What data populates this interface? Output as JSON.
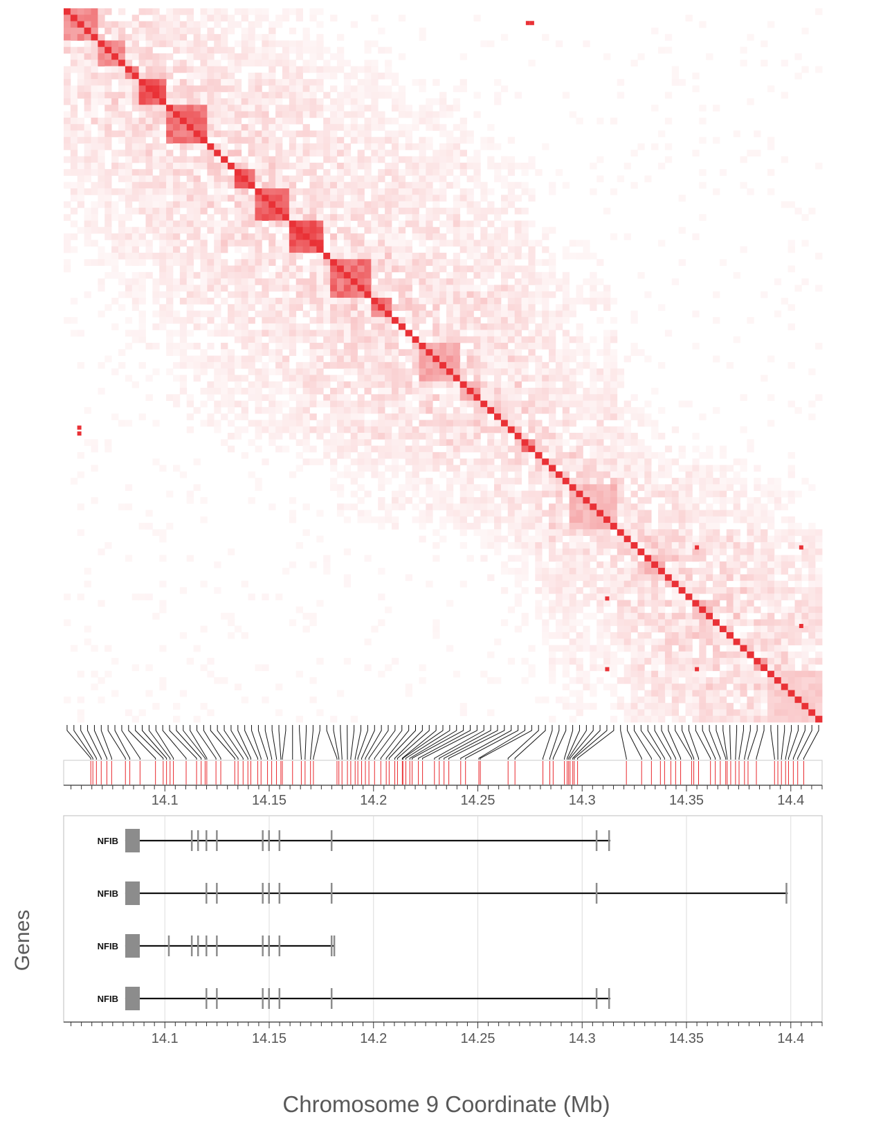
{
  "chart_data": [
    {
      "type": "heatmap",
      "description_source": "linkage-disequilibrium style matrix",
      "colors": {
        "low": "#ffffff",
        "high": "#e8262b"
      },
      "value_range": [
        0,
        1
      ],
      "blocks": [
        {
          "start": 14.059,
          "end": 14.074,
          "value": 0.55
        },
        {
          "start": 14.074,
          "end": 14.09,
          "value": 0.6
        },
        {
          "start": 14.09,
          "end": 14.1,
          "value": 0.55
        },
        {
          "start": 14.1,
          "end": 14.115,
          "value": 0.85
        },
        {
          "start": 14.115,
          "end": 14.127,
          "value": 0.7
        },
        {
          "start": 14.141,
          "end": 14.148,
          "value": 0.85
        },
        {
          "start": 14.148,
          "end": 14.16,
          "value": 0.75
        },
        {
          "start": 14.16,
          "end": 14.172,
          "value": 0.85
        },
        {
          "start": 14.173,
          "end": 14.182,
          "value": 0.7
        },
        {
          "start": 14.183,
          "end": 14.193,
          "value": 0.7
        },
        {
          "start": 14.193,
          "end": 14.199,
          "value": 0.65
        },
        {
          "start": 14.208,
          "end": 14.218,
          "value": 0.45
        },
        {
          "start": 14.218,
          "end": 14.226,
          "value": 0.45
        },
        {
          "start": 14.25,
          "end": 14.263,
          "value": 0.7
        },
        {
          "start": 14.267,
          "end": 14.273,
          "value": 0.6
        },
        {
          "start": 14.29,
          "end": 14.3,
          "value": 0.35
        },
        {
          "start": 14.3,
          "end": 14.307,
          "value": 0.35
        },
        {
          "start": 14.318,
          "end": 14.327,
          "value": 0.3
        },
        {
          "start": 14.338,
          "end": 14.345,
          "value": 0.35
        },
        {
          "start": 14.358,
          "end": 14.368,
          "value": 0.35
        },
        {
          "start": 14.378,
          "end": 14.388,
          "value": 0.45
        },
        {
          "start": 14.388,
          "end": 14.412,
          "value": 0.25
        }
      ],
      "hotspots": [
        {
          "x": 14.274,
          "y": 14.059
        },
        {
          "x": 14.276,
          "y": 14.059
        },
        {
          "x": 14.059,
          "y": 14.265
        },
        {
          "x": 14.059,
          "y": 14.268
        },
        {
          "x": 14.355,
          "y": 14.326
        },
        {
          "x": 14.405,
          "y": 14.326
        },
        {
          "x": 14.405,
          "y": 14.366
        },
        {
          "x": 14.312,
          "y": 14.352
        },
        {
          "x": 14.312,
          "y": 14.388
        },
        {
          "x": 14.355,
          "y": 14.388
        }
      ]
    },
    {
      "type": "scatter",
      "description_source": "variant positions track",
      "xlim": [
        14.0515,
        14.415
      ],
      "xticks": [
        14.1,
        14.15,
        14.2,
        14.25,
        14.3,
        14.35,
        14.4
      ],
      "xticklabels": [
        "14.1",
        "14.15",
        "14.2",
        "14.25",
        "14.3",
        "14.35",
        "14.4"
      ],
      "positions": [
        14.0645,
        14.0655,
        14.0672,
        14.0695,
        14.0722,
        14.0745,
        14.0811,
        14.0832,
        14.0881,
        14.0955,
        14.0992,
        14.1008,
        14.1025,
        14.1041,
        14.1102,
        14.1152,
        14.1174,
        14.1193,
        14.1201,
        14.1245,
        14.1268,
        14.1335,
        14.1351,
        14.1375,
        14.1398,
        14.1412,
        14.1445,
        14.1461,
        14.1492,
        14.1512,
        14.1535,
        14.1556,
        14.1563,
        14.1612,
        14.1654,
        14.1672,
        14.1698,
        14.1712,
        14.1825,
        14.1834,
        14.1849,
        14.1875,
        14.1891,
        14.1912,
        14.1925,
        14.1943,
        14.1961,
        14.1978,
        14.2005,
        14.2035,
        14.2061,
        14.2075,
        14.2102,
        14.2115,
        14.2138,
        14.2141,
        14.2155,
        14.2174,
        14.2185,
        14.2215,
        14.2235,
        14.2292,
        14.2315,
        14.2338,
        14.2361,
        14.2418,
        14.2441,
        14.2505,
        14.2512,
        14.2645,
        14.2678,
        14.2812,
        14.2845,
        14.2861,
        14.2915,
        14.2928,
        14.2935,
        14.2942,
        14.2955,
        14.2962,
        14.2978,
        14.3212,
        14.3285,
        14.3332,
        14.3375,
        14.3395,
        14.3425,
        14.3448,
        14.3472,
        14.3525,
        14.3535,
        14.3558,
        14.3615,
        14.3638,
        14.3662,
        14.3688,
        14.3695,
        14.3712,
        14.3735,
        14.3752,
        14.3778,
        14.3795,
        14.3835,
        14.3922,
        14.3938,
        14.3955,
        14.3975,
        14.3989,
        14.4012,
        14.4033,
        14.4062
      ]
    },
    {
      "type": "gene_track",
      "description_source": "transcript structures",
      "xlabel": "Chromosome 9 Coordinate (Mb)",
      "ylabel": "Genes",
      "xlim": [
        14.0515,
        14.415
      ],
      "xticks": [
        14.1,
        14.15,
        14.2,
        14.25,
        14.3,
        14.35,
        14.4
      ],
      "xticklabels": [
        "14.1",
        "14.15",
        "14.2",
        "14.25",
        "14.3",
        "14.35",
        "14.4"
      ],
      "transcripts": [
        {
          "name": "NFIB",
          "start": 14.081,
          "end": 14.3135,
          "exons": [
            [
              14.081,
              14.088
            ],
            [
              14.1125,
              14.1132
            ],
            [
              14.1155,
              14.1162
            ],
            [
              14.1195,
              14.1202
            ],
            [
              14.1245,
              14.1252
            ],
            [
              14.1465,
              14.1472
            ],
            [
              14.1495,
              14.1502
            ],
            [
              14.1545,
              14.1552
            ],
            [
              14.1795,
              14.1802
            ],
            [
              14.3065,
              14.3075
            ],
            [
              14.3125,
              14.3135
            ]
          ]
        },
        {
          "name": "NFIB",
          "start": 14.081,
          "end": 14.3985,
          "exons": [
            [
              14.081,
              14.088
            ],
            [
              14.1195,
              14.1202
            ],
            [
              14.1245,
              14.1252
            ],
            [
              14.1465,
              14.1472
            ],
            [
              14.1495,
              14.1502
            ],
            [
              14.1545,
              14.1552
            ],
            [
              14.1795,
              14.1802
            ],
            [
              14.3065,
              14.3075
            ],
            [
              14.3975,
              14.3985
            ]
          ]
        },
        {
          "name": "NFIB",
          "start": 14.081,
          "end": 14.1815,
          "exons": [
            [
              14.081,
              14.088
            ],
            [
              14.1015,
              14.1022
            ],
            [
              14.1125,
              14.1132
            ],
            [
              14.1155,
              14.1162
            ],
            [
              14.1195,
              14.1202
            ],
            [
              14.1245,
              14.1252
            ],
            [
              14.1465,
              14.1472
            ],
            [
              14.1495,
              14.1502
            ],
            [
              14.1545,
              14.1552
            ],
            [
              14.1795,
              14.1802
            ],
            [
              14.1808,
              14.1815
            ]
          ]
        },
        {
          "name": "NFIB",
          "start": 14.081,
          "end": 14.3135,
          "exons": [
            [
              14.081,
              14.088
            ],
            [
              14.1195,
              14.1202
            ],
            [
              14.1245,
              14.1252
            ],
            [
              14.1465,
              14.1472
            ],
            [
              14.1495,
              14.1502
            ],
            [
              14.1545,
              14.1552
            ],
            [
              14.1795,
              14.1802
            ],
            [
              14.3065,
              14.3075
            ],
            [
              14.3125,
              14.3135
            ]
          ]
        }
      ]
    }
  ]
}
